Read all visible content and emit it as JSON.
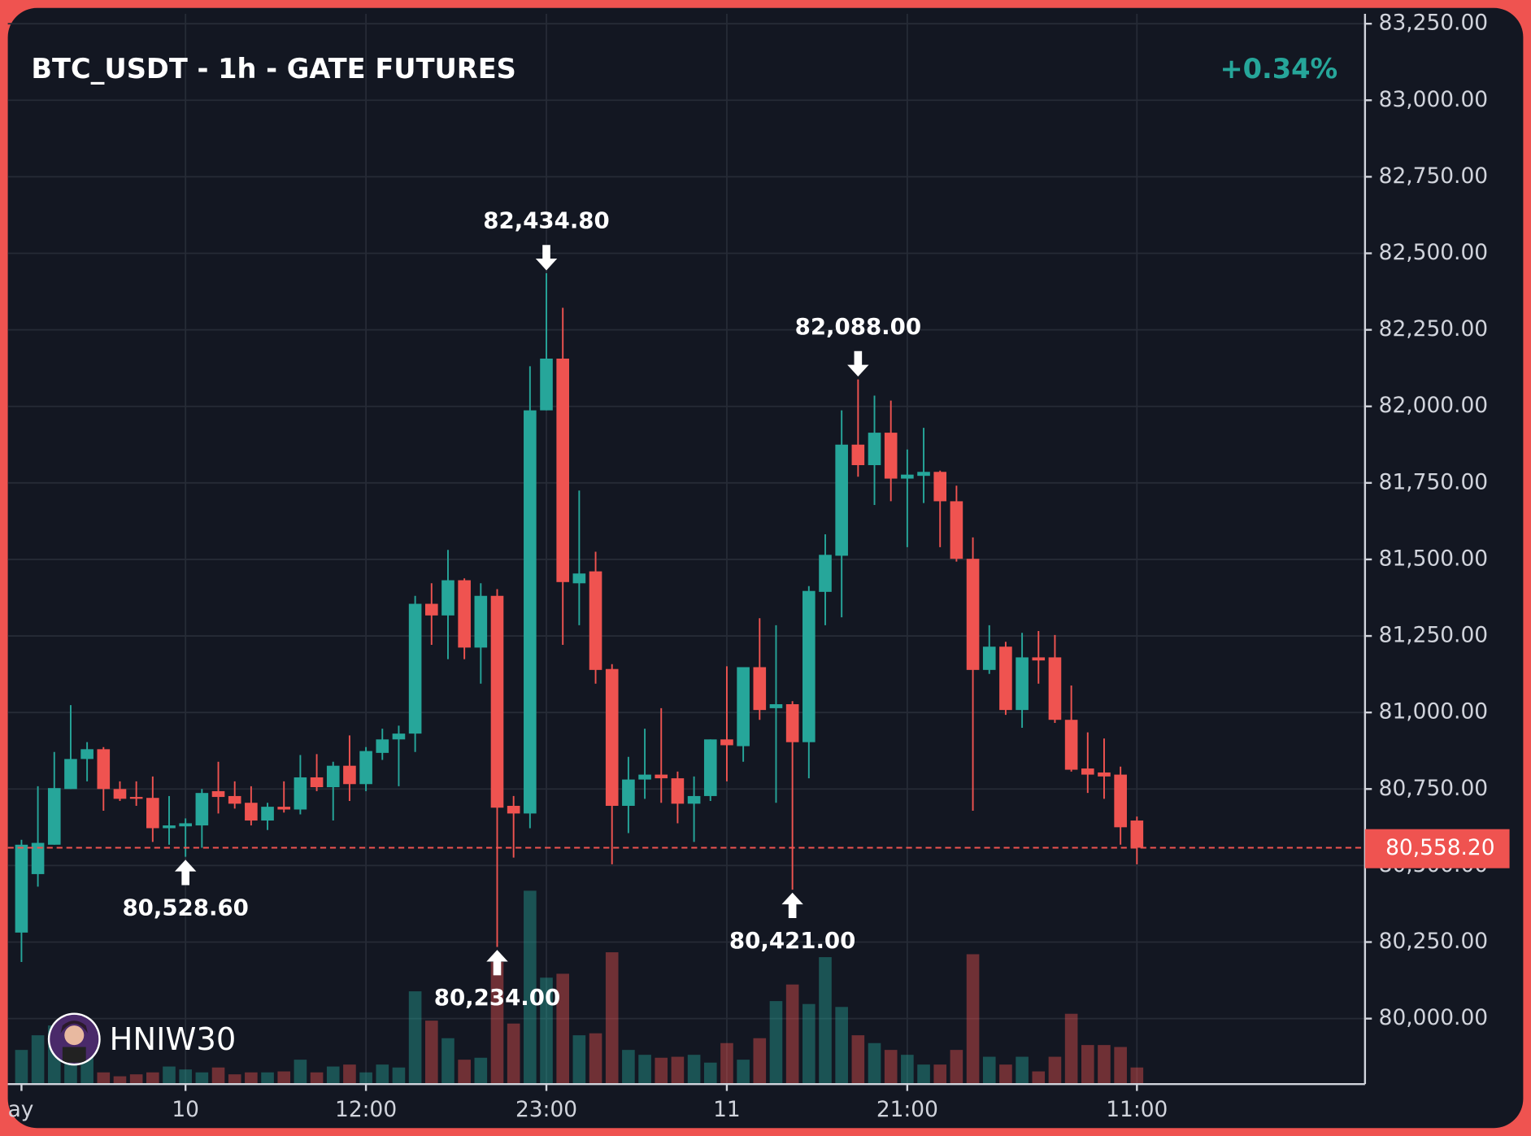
{
  "chart_data": {
    "type": "candlestick",
    "title": "BTC_USDT - 1h - GATE FUTURES",
    "change": "+0.34%",
    "watermark": "HNIW30",
    "categories": [
      "ay",
      null,
      null,
      null,
      null,
      null,
      null,
      null,
      null,
      null,
      "10",
      null,
      null,
      null,
      null,
      null,
      null,
      null,
      null,
      null,
      null,
      "12:00",
      null,
      null,
      null,
      null,
      null,
      null,
      null,
      null,
      null,
      null,
      "23:00",
      null,
      null,
      null,
      null,
      null,
      null,
      null,
      null,
      null,
      null,
      "11",
      null,
      null,
      null,
      null,
      null,
      null,
      null,
      null,
      null,
      null,
      "21:00",
      null,
      null,
      null,
      null,
      null,
      null,
      null,
      null,
      null,
      null,
      null,
      null,
      null,
      "11:00"
    ],
    "open": [
      80281,
      80472,
      80568,
      80750,
      80848,
      80880,
      80750,
      80724,
      80721,
      80622,
      80628,
      80631,
      80743,
      80727,
      80705,
      80647,
      80692,
      80683,
      80788,
      80756,
      80826,
      80766,
      80868,
      80912,
      80931,
      81355,
      81317,
      81432,
      81212,
      81381,
      80695,
      80670,
      81987,
      82156,
      81422,
      81461,
      81142,
      80695,
      80781,
      80797,
      80785,
      80702,
      80727,
      80912,
      80890,
      81148,
      81014,
      81027,
      80903,
      81394,
      81512,
      81875,
      81808,
      81914,
      81764,
      81773,
      81786,
      81690,
      81502,
      81139,
      81215,
      81008,
      81180,
      81180,
      80976,
      80817,
      80804,
      80797,
      80647
    ],
    "high": [
      80584,
      80759,
      80871,
      81024,
      80903,
      80887,
      80775,
      80775,
      80791,
      80727,
      80654,
      80750,
      80839,
      80775,
      80759,
      80705,
      80775,
      80861,
      80864,
      80839,
      80925,
      80887,
      80947,
      80957,
      81381,
      81422,
      81531,
      81438,
      81422,
      81403,
      80727,
      82131,
      82434.8,
      82322,
      81725,
      81525,
      81158,
      80855,
      80947,
      81014,
      80807,
      80791,
      80912,
      81151,
      81148,
      81308,
      81285,
      81037,
      81413,
      81582,
      81987,
      82088,
      82035,
      82019,
      81859,
      81930,
      81790,
      81741,
      81572,
      81285,
      81231,
      81260,
      81266,
      81253,
      81088,
      80935,
      80915,
      80823,
      80660
    ],
    "low": [
      80185,
      80431,
      80568,
      80750,
      80775,
      80679,
      80711,
      80695,
      80577,
      80568,
      80528.6,
      80558,
      80670,
      80686,
      80631,
      80616,
      80673,
      80667,
      80743,
      80647,
      80711,
      80743,
      80845,
      80759,
      80871,
      81221,
      81174,
      81174,
      81094,
      80234,
      80526,
      80622,
      81987,
      81221,
      81285,
      81094,
      80504,
      80606,
      80718,
      80705,
      80638,
      80577,
      80711,
      80775,
      80839,
      80976,
      80705,
      80421,
      80785,
      81285,
      81311,
      81770,
      81678,
      81690,
      81540,
      81684,
      81540,
      81493,
      80679,
      81126,
      80992,
      80950,
      81094,
      80966,
      80807,
      80737,
      80718,
      80568,
      80504
    ],
    "close": [
      80568,
      80574,
      80753,
      80848,
      80880,
      80750,
      80718,
      80718,
      80622,
      80631,
      80638,
      80737,
      80724,
      80702,
      80647,
      80692,
      80683,
      80788,
      80756,
      80826,
      80766,
      80874,
      80912,
      80931,
      81355,
      81317,
      81432,
      81212,
      81381,
      80689,
      80670,
      81987,
      82156,
      81426,
      81454,
      81139,
      80695,
      80781,
      80797,
      80785,
      80702,
      80727,
      80912,
      80893,
      81148,
      81008,
      81027,
      80903,
      81397,
      81515,
      81875,
      81808,
      81914,
      81764,
      81777,
      81786,
      81690,
      81502,
      81139,
      81215,
      81008,
      81180,
      81170,
      80976,
      80813,
      80797,
      80791,
      80625,
      80558.2
    ],
    "volume": [
      35,
      50,
      60,
      32,
      30,
      12,
      8,
      10,
      12,
      18,
      15,
      12,
      17,
      10,
      12,
      12,
      13,
      25,
      12,
      18,
      20,
      12,
      20,
      17,
      95,
      65,
      47,
      25,
      27,
      125,
      62,
      198,
      109,
      113,
      50,
      52,
      135,
      35,
      30,
      27,
      28,
      30,
      22,
      42,
      25,
      47,
      85,
      102,
      82,
      130,
      79,
      50,
      42,
      35,
      30,
      20,
      20,
      35,
      133,
      28,
      20,
      28,
      13,
      28,
      72,
      40,
      40,
      38,
      17
    ],
    "up_color": "#26a69a",
    "down_color": "#ef5350",
    "ylim": [
      79786,
      83327
    ],
    "yticks": [
      {
        "value": 80000,
        "label": "80,000.00"
      },
      {
        "value": 80250,
        "label": "80,250.00"
      },
      {
        "value": 80500,
        "label": "80,500.00"
      },
      {
        "value": 80750,
        "label": "80,750.00"
      },
      {
        "value": 81000,
        "label": "81,000.00"
      },
      {
        "value": 81250,
        "label": "81,250.00"
      },
      {
        "value": 81500,
        "label": "81,500.00"
      },
      {
        "value": 81750,
        "label": "81,750.00"
      },
      {
        "value": 82000,
        "label": "82,000.00"
      },
      {
        "value": 82250,
        "label": "82,250.00"
      },
      {
        "value": 82500,
        "label": "82,500.00"
      },
      {
        "value": 82750,
        "label": "82,750.00"
      },
      {
        "value": 83000,
        "label": "83,000.00"
      },
      {
        "value": 83250,
        "label": "83,250.00"
      }
    ],
    "grid": true,
    "last_price": {
      "value": 80558.2,
      "label": "80,558.20"
    },
    "annotations": [
      {
        "index": 32,
        "value": 82434.8,
        "label": "82,434.80",
        "position": "above"
      },
      {
        "index": 51,
        "value": 82088,
        "label": "82,088.00",
        "position": "above"
      },
      {
        "index": 10,
        "value": 80528.6,
        "label": "80,528.60",
        "position": "below"
      },
      {
        "index": 29,
        "value": 80234,
        "label": "80,234.00",
        "position": "below"
      },
      {
        "index": 47,
        "value": 80421,
        "label": "80,421.00",
        "position": "below"
      }
    ]
  }
}
